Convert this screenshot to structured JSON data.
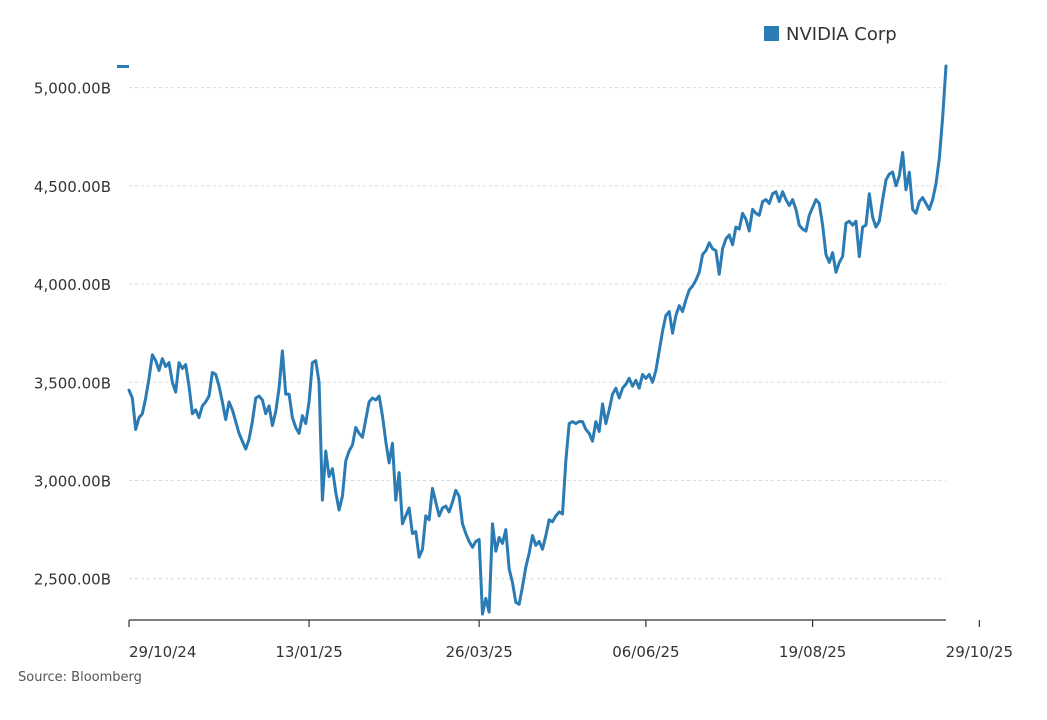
{
  "chart_data": {
    "type": "line",
    "title": "",
    "xlabel": "",
    "ylabel": "",
    "ylim": [
      2290,
      5110
    ],
    "ytick_values": [
      2500,
      3000,
      3500,
      4000,
      4500,
      5000
    ],
    "ytick_labels": [
      "2,500.00B",
      "3,000.00B",
      "3,500.00B",
      "4,000.00B",
      "4,500.00B",
      "5,000.00B"
    ],
    "xtick_labels": [
      "29/10/24",
      "13/01/25",
      "26/03/25",
      "06/06/25",
      "19/08/25",
      "29/10/25"
    ],
    "xtick_index": [
      0,
      54,
      105,
      155,
      205,
      255
    ],
    "grid": true,
    "legend_position": "top-right",
    "source": "Source: Bloomberg",
    "colors": {
      "series": "#2b7bb5",
      "axis": "#333333",
      "grid": "#d9d9d9"
    },
    "series": [
      {
        "name": "NVIDIA Corp",
        "values": [
          3460,
          3420,
          3260,
          3320,
          3340,
          3420,
          3520,
          3640,
          3610,
          3560,
          3620,
          3580,
          3600,
          3500,
          3450,
          3600,
          3570,
          3590,
          3480,
          3340,
          3360,
          3320,
          3380,
          3400,
          3430,
          3550,
          3540,
          3480,
          3400,
          3310,
          3400,
          3360,
          3300,
          3240,
          3200,
          3160,
          3210,
          3300,
          3420,
          3430,
          3410,
          3340,
          3380,
          3280,
          3350,
          3470,
          3660,
          3440,
          3440,
          3320,
          3270,
          3240,
          3330,
          3290,
          3400,
          3600,
          3610,
          3500,
          2900,
          3150,
          3020,
          3060,
          2940,
          2850,
          2920,
          3100,
          3150,
          3180,
          3270,
          3240,
          3220,
          3310,
          3400,
          3420,
          3410,
          3430,
          3330,
          3200,
          3090,
          3190,
          2900,
          3040,
          2780,
          2820,
          2860,
          2730,
          2740,
          2610,
          2650,
          2820,
          2800,
          2960,
          2890,
          2820,
          2860,
          2870,
          2840,
          2890,
          2950,
          2920,
          2780,
          2730,
          2690,
          2660,
          2690,
          2700,
          2320,
          2400,
          2330,
          2780,
          2640,
          2710,
          2680,
          2750,
          2550,
          2480,
          2380,
          2370,
          2460,
          2560,
          2630,
          2720,
          2670,
          2690,
          2650,
          2720,
          2800,
          2790,
          2820,
          2840,
          2830,
          3100,
          3290,
          3300,
          3290,
          3300,
          3300,
          3260,
          3240,
          3200,
          3300,
          3250,
          3390,
          3290,
          3360,
          3440,
          3470,
          3420,
          3470,
          3490,
          3520,
          3480,
          3510,
          3470,
          3540,
          3520,
          3540,
          3500,
          3560,
          3660,
          3760,
          3840,
          3860,
          3750,
          3840,
          3890,
          3860,
          3920,
          3970,
          3990,
          4020,
          4060,
          4150,
          4170,
          4210,
          4180,
          4170,
          4050,
          4180,
          4230,
          4250,
          4200,
          4290,
          4280,
          4360,
          4330,
          4270,
          4380,
          4360,
          4350,
          4420,
          4430,
          4410,
          4460,
          4470,
          4420,
          4470,
          4430,
          4400,
          4430,
          4380,
          4300,
          4280,
          4270,
          4350,
          4390,
          4430,
          4410,
          4300,
          4150,
          4110,
          4160,
          4060,
          4110,
          4140,
          4310,
          4320,
          4300,
          4320,
          4140,
          4290,
          4300,
          4460,
          4340,
          4290,
          4320,
          4430,
          4530,
          4560,
          4570,
          4500,
          4550,
          4670,
          4480,
          4570,
          4380,
          4360,
          4420,
          4440,
          4410,
          4380,
          4430,
          4510,
          4640,
          4850,
          5110
        ]
      }
    ]
  }
}
